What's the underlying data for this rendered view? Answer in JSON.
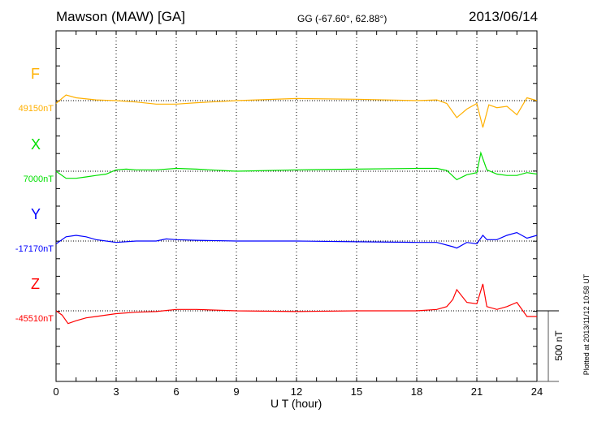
{
  "header": {
    "station": "Mawson (MAW)  [GA]",
    "coords": "GG (-67.60°,  62.88°)",
    "date": "2013/06/14"
  },
  "footer_note": "Plotted at 2013/11/12 10:58 UT",
  "chart_data": {
    "type": "line",
    "title": "Mawson (MAW)  [GA]",
    "xlabel": "U T (hour)",
    "xlim": [
      0,
      24
    ],
    "xticks": [
      "0",
      "3",
      "6",
      "9",
      "12",
      "15",
      "18",
      "21",
      "24"
    ],
    "grid": "vertical dotted every 3 hours; dotted baseline per series",
    "scale_bar": "500 nT",
    "scale_bar_nT": 500,
    "series": [
      {
        "name": "F",
        "baseline_label": "49150nT",
        "color": "#ffb000",
        "points": [
          [
            0,
            -20
          ],
          [
            0.5,
            40
          ],
          [
            1,
            20
          ],
          [
            2,
            5
          ],
          [
            3,
            0
          ],
          [
            4,
            -10
          ],
          [
            5,
            -25
          ],
          [
            6,
            -25
          ],
          [
            7,
            -15
          ],
          [
            9,
            0
          ],
          [
            12,
            15
          ],
          [
            15,
            10
          ],
          [
            18,
            0
          ],
          [
            19,
            5
          ],
          [
            19.5,
            -20
          ],
          [
            20,
            -120
          ],
          [
            20.5,
            -60
          ],
          [
            21,
            -20
          ],
          [
            21.3,
            -190
          ],
          [
            21.6,
            -30
          ],
          [
            22,
            -50
          ],
          [
            22.5,
            -40
          ],
          [
            23,
            -100
          ],
          [
            23.5,
            20
          ],
          [
            24,
            0
          ]
        ]
      },
      {
        "name": "X",
        "baseline_label": "7000nT",
        "color": "#00e000",
        "points": [
          [
            0,
            0
          ],
          [
            0.5,
            -50
          ],
          [
            1,
            -50
          ],
          [
            1.5,
            -40
          ],
          [
            2,
            -30
          ],
          [
            2.5,
            -20
          ],
          [
            3,
            10
          ],
          [
            3.5,
            15
          ],
          [
            4,
            10
          ],
          [
            5,
            10
          ],
          [
            6,
            20
          ],
          [
            7,
            15
          ],
          [
            9,
            0
          ],
          [
            12,
            10
          ],
          [
            15,
            15
          ],
          [
            18,
            20
          ],
          [
            19,
            20
          ],
          [
            19.5,
            5
          ],
          [
            20,
            -60
          ],
          [
            20.5,
            -25
          ],
          [
            21,
            -10
          ],
          [
            21.2,
            130
          ],
          [
            21.5,
            10
          ],
          [
            22,
            -20
          ],
          [
            22.5,
            -30
          ],
          [
            23,
            -30
          ],
          [
            23.5,
            -10
          ],
          [
            24,
            -20
          ]
        ]
      },
      {
        "name": "Y",
        "baseline_label": "-17170nT",
        "color": "#0000ff",
        "points": [
          [
            0,
            -20
          ],
          [
            0.5,
            30
          ],
          [
            1,
            40
          ],
          [
            1.5,
            30
          ],
          [
            2,
            10
          ],
          [
            3,
            -10
          ],
          [
            4,
            0
          ],
          [
            5,
            0
          ],
          [
            5.5,
            15
          ],
          [
            6,
            10
          ],
          [
            7,
            5
          ],
          [
            9,
            0
          ],
          [
            12,
            0
          ],
          [
            15,
            -5
          ],
          [
            18,
            -10
          ],
          [
            19,
            -10
          ],
          [
            19.8,
            -40
          ],
          [
            20,
            -50
          ],
          [
            20.5,
            -10
          ],
          [
            21,
            -20
          ],
          [
            21.3,
            40
          ],
          [
            21.5,
            10
          ],
          [
            22,
            10
          ],
          [
            22.5,
            40
          ],
          [
            23,
            60
          ],
          [
            23.5,
            20
          ],
          [
            24,
            40
          ]
        ]
      },
      {
        "name": "Z",
        "baseline_label": "-45510nT",
        "color": "#ff0000",
        "points": [
          [
            0,
            0
          ],
          [
            0.3,
            -30
          ],
          [
            0.6,
            -90
          ],
          [
            1,
            -70
          ],
          [
            1.5,
            -50
          ],
          [
            2,
            -40
          ],
          [
            3,
            -20
          ],
          [
            4,
            -10
          ],
          [
            5,
            -5
          ],
          [
            6,
            10
          ],
          [
            7,
            10
          ],
          [
            9,
            0
          ],
          [
            12,
            -5
          ],
          [
            15,
            0
          ],
          [
            18,
            0
          ],
          [
            19,
            10
          ],
          [
            19.5,
            30
          ],
          [
            19.8,
            80
          ],
          [
            20,
            150
          ],
          [
            20.5,
            60
          ],
          [
            21,
            50
          ],
          [
            21.3,
            190
          ],
          [
            21.5,
            30
          ],
          [
            22,
            10
          ],
          [
            22.5,
            30
          ],
          [
            23,
            60
          ],
          [
            23.5,
            -40
          ],
          [
            24,
            -40
          ]
        ]
      }
    ]
  }
}
